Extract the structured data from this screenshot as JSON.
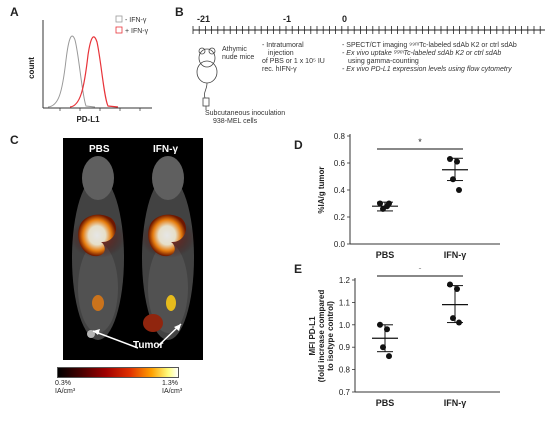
{
  "panels": {
    "a": {
      "label": "A",
      "ylabel": "count",
      "xlabel": "PD-L1",
      "legend": [
        {
          "text": "- IFN-γ",
          "color": "#999999"
        },
        {
          "text": "+ IFN-γ",
          "color": "#e8343a"
        }
      ]
    },
    "b": {
      "label": "B",
      "timepoints": [
        "-21",
        "-1",
        "0"
      ],
      "mice_label": [
        "Athymic",
        "nude mice"
      ],
      "injection_text": [
        "- Intratumoral",
        "injection",
        "of PBS or 1 x 10⁵ IU",
        "rec. hIFN-γ"
      ],
      "imaging_text": [
        "- SPECT/CT imaging ⁹⁹ᵐTc-labeled sdAb K2 or ctrl sdAb",
        "- Ex vivo uptake ⁹⁹ᵐTc-labeled sdAb K2 or ctrl sdAb",
        "using gamma-counting",
        "- Ex vivo PD-L1 expression levels using flow cytometry"
      ],
      "inoculation_text": [
        "Subcutaneous inoculation",
        "938-MEL  cells"
      ]
    },
    "c": {
      "label": "C",
      "left_title": "PBS",
      "right_title": "IFN-γ",
      "tumor_label": "Tumor",
      "scale_min": "0.3%",
      "scale_min_unit": "IA/cm³",
      "scale_max": "1.3%",
      "scale_max_unit": "IA/cm³"
    },
    "d": {
      "label": "D",
      "sig": "*"
    },
    "e": {
      "label": "E",
      "sig": "*"
    }
  },
  "chart_data": [
    {
      "id": "D",
      "type": "scatter",
      "ylabel": "%IA/g tumor",
      "ylim": [
        0,
        0.8
      ],
      "yticks": [
        "0.0",
        "0.2",
        "0.4",
        "0.6",
        "0.8"
      ],
      "categories": [
        "PBS",
        "IFN-γ"
      ],
      "points": [
        [
          0.3,
          0.28,
          0.26,
          0.3
        ],
        [
          0.63,
          0.61,
          0.48,
          0.4
        ]
      ],
      "mean": [
        0.28,
        0.55
      ],
      "err_low": [
        0.245,
        0.47
      ],
      "err_high": [
        0.31,
        0.635
      ]
    },
    {
      "id": "E",
      "type": "scatter",
      "ylabel": "MFI PD-L1\n(fold increase compared\nto isotype control)",
      "ylim": [
        0.7,
        1.2
      ],
      "yticks": [
        "0.7",
        "0.8",
        "0.9",
        "1.0",
        "1.1",
        "1.2"
      ],
      "categories": [
        "PBS",
        "IFN-γ"
      ],
      "points": [
        [
          1.0,
          0.98,
          0.9,
          0.86
        ],
        [
          1.18,
          1.16,
          1.03,
          1.01
        ]
      ],
      "mean": [
        0.94,
        1.09
      ],
      "err_low": [
        0.88,
        1.01
      ],
      "err_high": [
        1.0,
        1.175
      ]
    }
  ]
}
